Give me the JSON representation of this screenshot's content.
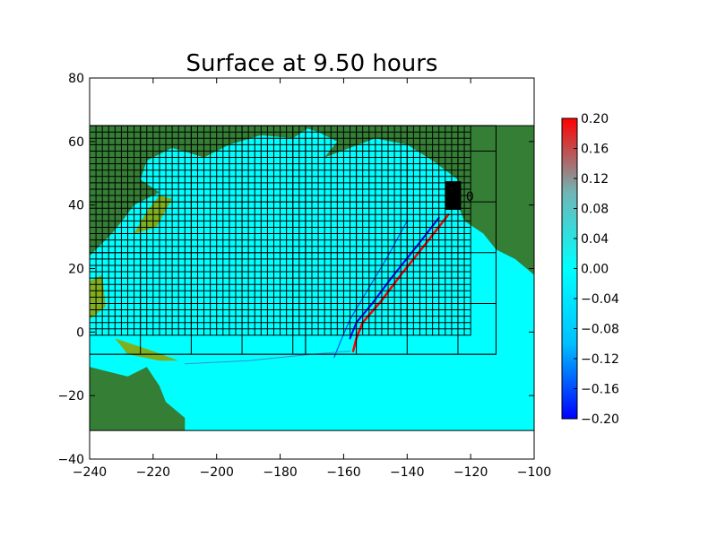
{
  "chart_data": {
    "type": "heatmap",
    "title": "Surface at 9.50 hours",
    "xlabel": "",
    "ylabel": "",
    "xlim": [
      -240,
      -100
    ],
    "ylim": [
      -40,
      80
    ],
    "x_ticks": [
      "−240",
      "−220",
      "−200",
      "−180",
      "−160",
      "−140",
      "−120",
      "−100"
    ],
    "x_tick_values": [
      -240,
      -220,
      -200,
      -180,
      -160,
      -140,
      -120,
      -100
    ],
    "y_ticks": [
      "−40",
      "−20",
      "0",
      "20",
      "40",
      "60",
      "80"
    ],
    "y_tick_values": [
      -40,
      -20,
      0,
      20,
      40,
      60,
      80
    ],
    "domain_extent": {
      "lon": [
        -240,
        -100
      ],
      "lat": [
        -31,
        65
      ]
    },
    "colorbar": {
      "range": [
        -0.2,
        0.2
      ],
      "ticks": [
        "−0.20",
        "−0.16",
        "−0.12",
        "−0.08",
        "−0.04",
        "0.00",
        "0.04",
        "0.08",
        "0.12",
        "0.16",
        "0.20"
      ],
      "tick_values": [
        -0.2,
        -0.16,
        -0.12,
        -0.08,
        -0.04,
        0.0,
        0.04,
        0.08,
        0.12,
        0.16,
        0.2
      ],
      "colors": [
        "#0000ff",
        "#00bfff",
        "#00ffff",
        "#6fb7b7",
        "#ff0000"
      ]
    },
    "gauge": {
      "label": "0",
      "lon": -125,
      "lat": 43
    },
    "grid": false,
    "colors": {
      "ocean": "#00ffff",
      "land": "#357e35",
      "shallow": "#7faf1e"
    }
  }
}
